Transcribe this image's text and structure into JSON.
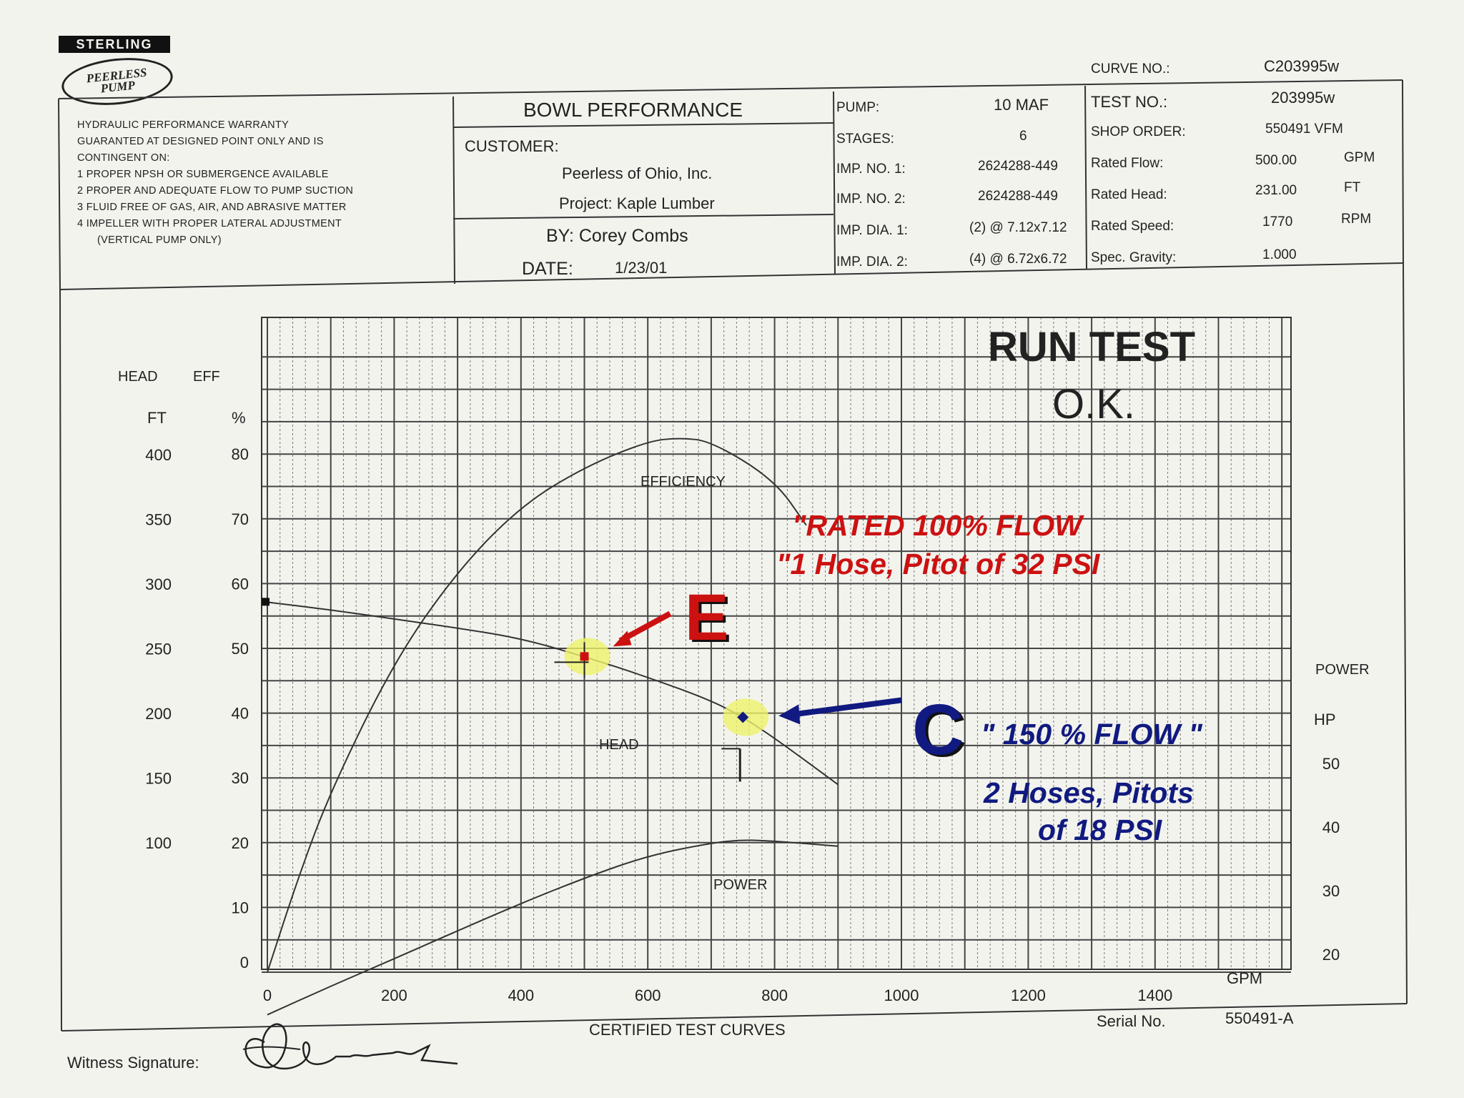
{
  "logo": {
    "top": "STERLING",
    "oval_line1": "PEERLESS",
    "oval_line2": "PUMP"
  },
  "curve_no": {
    "label": "CURVE NO.:",
    "value": "C203995w"
  },
  "warranty": [
    "HYDRAULIC PERFORMANCE WARRANTY",
    "GUARANTED AT DESIGNED POINT ONLY AND IS",
    "CONTINGENT ON:",
    "1 PROPER NPSH OR SUBMERGENCE AVAILABLE",
    "2 PROPER AND ADEQUATE FLOW TO PUMP SUCTION",
    "3 FLUID FREE OF GAS, AIR, AND ABRASIVE MATTER",
    "4 IMPELLER WITH PROPER LATERAL ADJUSTMENT",
    "(VERTICAL PUMP ONLY)"
  ],
  "bowl": {
    "title": "BOWL PERFORMANCE",
    "customer_label": "CUSTOMER:",
    "customer": "Peerless of Ohio, Inc.",
    "project": "Project: Kaple Lumber",
    "by": "BY: Corey Combs",
    "date_label": "DATE:",
    "date": "1/23/01"
  },
  "pump_info": [
    {
      "label": "PUMP:",
      "value": "10 MAF"
    },
    {
      "label": "STAGES:",
      "value": "6"
    },
    {
      "label": "IMP.  NO. 1:",
      "value": "2624288-449"
    },
    {
      "label": "IMP.  NO. 2:",
      "value": "2624288-449"
    },
    {
      "label": "IMP. DIA. 1:",
      "value": "(2) @ 7.12x7.12"
    },
    {
      "label": "IMP. DIA. 2:",
      "value": "(4) @ 6.72x6.72"
    }
  ],
  "test_info": [
    {
      "label": "TEST NO.:",
      "value": "203995w",
      "unit": ""
    },
    {
      "label": "SHOP ORDER:",
      "value": "550491 VFM",
      "unit": ""
    },
    {
      "label": "Rated Flow:",
      "value": "500.00",
      "unit": "GPM"
    },
    {
      "label": "Rated Head:",
      "value": "231.00",
      "unit": "FT"
    },
    {
      "label": "Rated Speed:",
      "value": "1770",
      "unit": "RPM"
    },
    {
      "label": "Spec. Gravity:",
      "value": "1.000",
      "unit": ""
    }
  ],
  "footer": {
    "title": "CERTIFIED TEST CURVES",
    "serial_label": "Serial No.",
    "serial_value": "550491-A",
    "witness_label": "Witness Signature:"
  },
  "annotations": {
    "run_test_1": "RUN TEST",
    "run_test_2": "O.K.",
    "rated_1": "\"RATED  100%  FLOW",
    "rated_2": "\"1 Hose,  Pitot of 32 PSI",
    "letter_e": "E",
    "letter_c": "C",
    "flow150": "\" 150 %  FLOW \"",
    "hoses_1": "2 Hoses,  Pitots",
    "hoses_2": "of 18 PSI"
  },
  "colors": {
    "annotation_red": "#cc1111",
    "annotation_blue": "#101a80",
    "highlight": "#eef26a"
  },
  "chart_data": {
    "type": "line",
    "xlabel": "GPM",
    "x_ticks": [
      0,
      200,
      400,
      600,
      800,
      1000,
      1200,
      1400
    ],
    "xlim": [
      0,
      1600
    ],
    "head_axis": {
      "title": "HEAD",
      "unit": "FT",
      "ticks": [
        0,
        100,
        150,
        200,
        250,
        300,
        350,
        400
      ],
      "range": [
        0,
        450
      ]
    },
    "eff_axis": {
      "title": "EFF",
      "unit": "%",
      "ticks": [
        0,
        10,
        20,
        30,
        40,
        50,
        60,
        70,
        80
      ],
      "range": [
        0,
        90
      ]
    },
    "power_axis": {
      "title": "POWER",
      "unit": "HP",
      "ticks": [
        20,
        30,
        40,
        50
      ],
      "range": [
        10,
        60
      ]
    },
    "grid": true,
    "series": [
      {
        "name": "HEAD",
        "axis": "head",
        "x": [
          0,
          100,
          200,
          300,
          400,
          500,
          600,
          700,
          750,
          800,
          900
        ],
        "y": [
          286,
          280,
          273,
          266,
          258,
          244,
          228,
          210,
          197,
          181,
          145
        ]
      },
      {
        "name": "EFFICIENCY",
        "axis": "eff",
        "x": [
          0,
          50,
          100,
          200,
          300,
          400,
          500,
          600,
          650,
          700,
          800,
          850
        ],
        "y": [
          0,
          15,
          28,
          48,
          62,
          72,
          78,
          82,
          82.5,
          82,
          76,
          69
        ]
      },
      {
        "name": "POWER",
        "axis": "power",
        "x": [
          0,
          100,
          200,
          300,
          400,
          500,
          600,
          700,
          750,
          800,
          900
        ],
        "y": [
          10.5,
          15,
          19.3,
          23.7,
          28,
          32,
          35.5,
          37.5,
          38,
          37.8,
          37
        ]
      }
    ],
    "marked_points": [
      {
        "label": "E",
        "x": 500,
        "y": 244
      },
      {
        "label": "C",
        "x": 750,
        "y": 197
      }
    ]
  }
}
